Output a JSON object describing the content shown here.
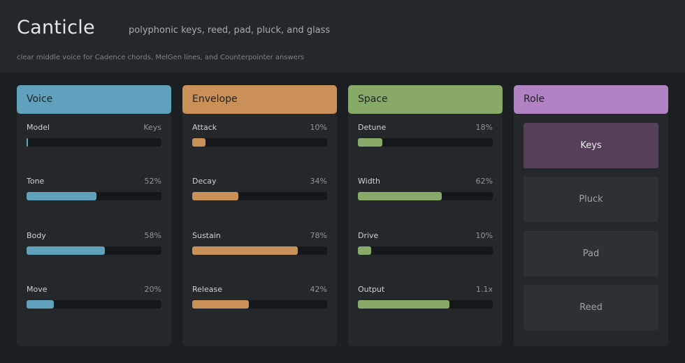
{
  "header": {
    "title": "Canticle",
    "subtitle": "polyphonic keys, reed, pad, pluck, and glass",
    "caption": "clear middle voice for Cadence chords, MelGen lines, and Counterpointer answers"
  },
  "colors": {
    "voice": "#62a1bb",
    "envelope": "#c99158",
    "space": "#88aa69",
    "role": "#b283c2"
  },
  "panels": {
    "voice": {
      "title": "Voice",
      "params": [
        {
          "label": "Model",
          "value": "Keys",
          "level": 0
        },
        {
          "label": "Tone",
          "value": "52%",
          "level": 0.52
        },
        {
          "label": "Body",
          "value": "58%",
          "level": 0.58
        },
        {
          "label": "Move",
          "value": "20%",
          "level": 0.2
        }
      ]
    },
    "envelope": {
      "title": "Envelope",
      "params": [
        {
          "label": "Attack",
          "value": "10%",
          "level": 0.1
        },
        {
          "label": "Decay",
          "value": "34%",
          "level": 0.34
        },
        {
          "label": "Sustain",
          "value": "78%",
          "level": 0.78
        },
        {
          "label": "Release",
          "value": "42%",
          "level": 0.42
        }
      ]
    },
    "space": {
      "title": "Space",
      "params": [
        {
          "label": "Detune",
          "value": "18%",
          "level": 0.18
        },
        {
          "label": "Width",
          "value": "62%",
          "level": 0.62
        },
        {
          "label": "Drive",
          "value": "10%",
          "level": 0.1
        },
        {
          "label": "Output",
          "value": "1.1x",
          "level": 0.68
        }
      ]
    },
    "role": {
      "title": "Role",
      "options": [
        "Keys",
        "Pluck",
        "Pad",
        "Reed"
      ],
      "selected": "Keys"
    }
  }
}
